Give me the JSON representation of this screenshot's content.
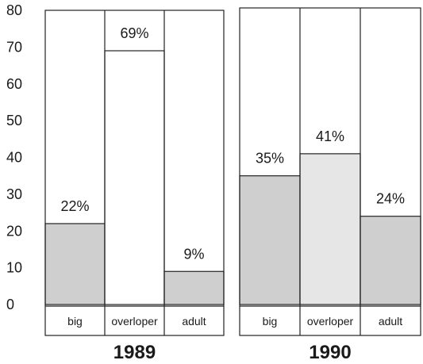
{
  "chart_data": {
    "type": "bar",
    "ylim": [
      0,
      80
    ],
    "yticks": [
      "0",
      "10",
      "20",
      "30",
      "40",
      "50",
      "60",
      "70",
      "80"
    ],
    "grid": false,
    "panels": [
      {
        "title": "1989",
        "categories": [
          "big",
          "overloper",
          "adult"
        ],
        "values": [
          22,
          69,
          9
        ],
        "labels": [
          "22%",
          "69%",
          "9%"
        ],
        "colors": [
          "#cfcfcf",
          "#ffffff",
          "#cfcfcf"
        ]
      },
      {
        "title": "1990",
        "categories": [
          "big",
          "overloper",
          "adult"
        ],
        "values": [
          35,
          41,
          24
        ],
        "labels": [
          "35%",
          "41%",
          "24%"
        ],
        "colors": [
          "#cfcfcf",
          "#e6e6e6",
          "#cfcfcf"
        ]
      }
    ]
  }
}
